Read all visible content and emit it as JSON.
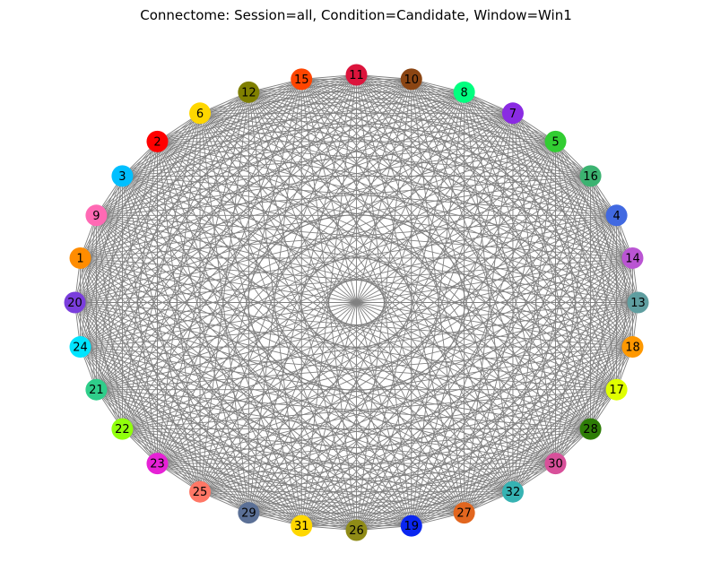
{
  "title": "Connectome: Session=all, Condition=Candidate, Window=Win1",
  "graph": {
    "layout": "circular",
    "edges": "complete",
    "edge_color": "#808080",
    "nodes": [
      {
        "label": "11",
        "color": "#DC143C"
      },
      {
        "label": "10",
        "color": "#8B4513"
      },
      {
        "label": "8",
        "color": "#00FF7F"
      },
      {
        "label": "7",
        "color": "#8A2BE2"
      },
      {
        "label": "5",
        "color": "#32CD32"
      },
      {
        "label": "16",
        "color": "#3CB371"
      },
      {
        "label": "4",
        "color": "#4169E1"
      },
      {
        "label": "14",
        "color": "#BA55D3"
      },
      {
        "label": "13",
        "color": "#5F9EA0"
      },
      {
        "label": "18",
        "color": "#FF9800"
      },
      {
        "label": "17",
        "color": "#DFFF00"
      },
      {
        "label": "28",
        "color": "#2E7D07"
      },
      {
        "label": "30",
        "color": "#D8509A"
      },
      {
        "label": "32",
        "color": "#36B3B3"
      },
      {
        "label": "27",
        "color": "#E2661F"
      },
      {
        "label": "19",
        "color": "#0A26F0"
      },
      {
        "label": "26",
        "color": "#8F8B17"
      },
      {
        "label": "31",
        "color": "#FFD700"
      },
      {
        "label": "29",
        "color": "#5B7096"
      },
      {
        "label": "25",
        "color": "#FF7766"
      },
      {
        "label": "23",
        "color": "#E621D6"
      },
      {
        "label": "22",
        "color": "#90FF0C"
      },
      {
        "label": "21",
        "color": "#2FCE8A"
      },
      {
        "label": "24",
        "color": "#00E5FF"
      },
      {
        "label": "20",
        "color": "#7A3EDC"
      },
      {
        "label": "1",
        "color": "#FF8C00"
      },
      {
        "label": "9",
        "color": "#FF69B4"
      },
      {
        "label": "3",
        "color": "#00BFFF"
      },
      {
        "label": "2",
        "color": "#FF0000"
      },
      {
        "label": "6",
        "color": "#FFD700"
      },
      {
        "label": "12",
        "color": "#808000"
      },
      {
        "label": "15",
        "color": "#FF4500"
      }
    ]
  }
}
